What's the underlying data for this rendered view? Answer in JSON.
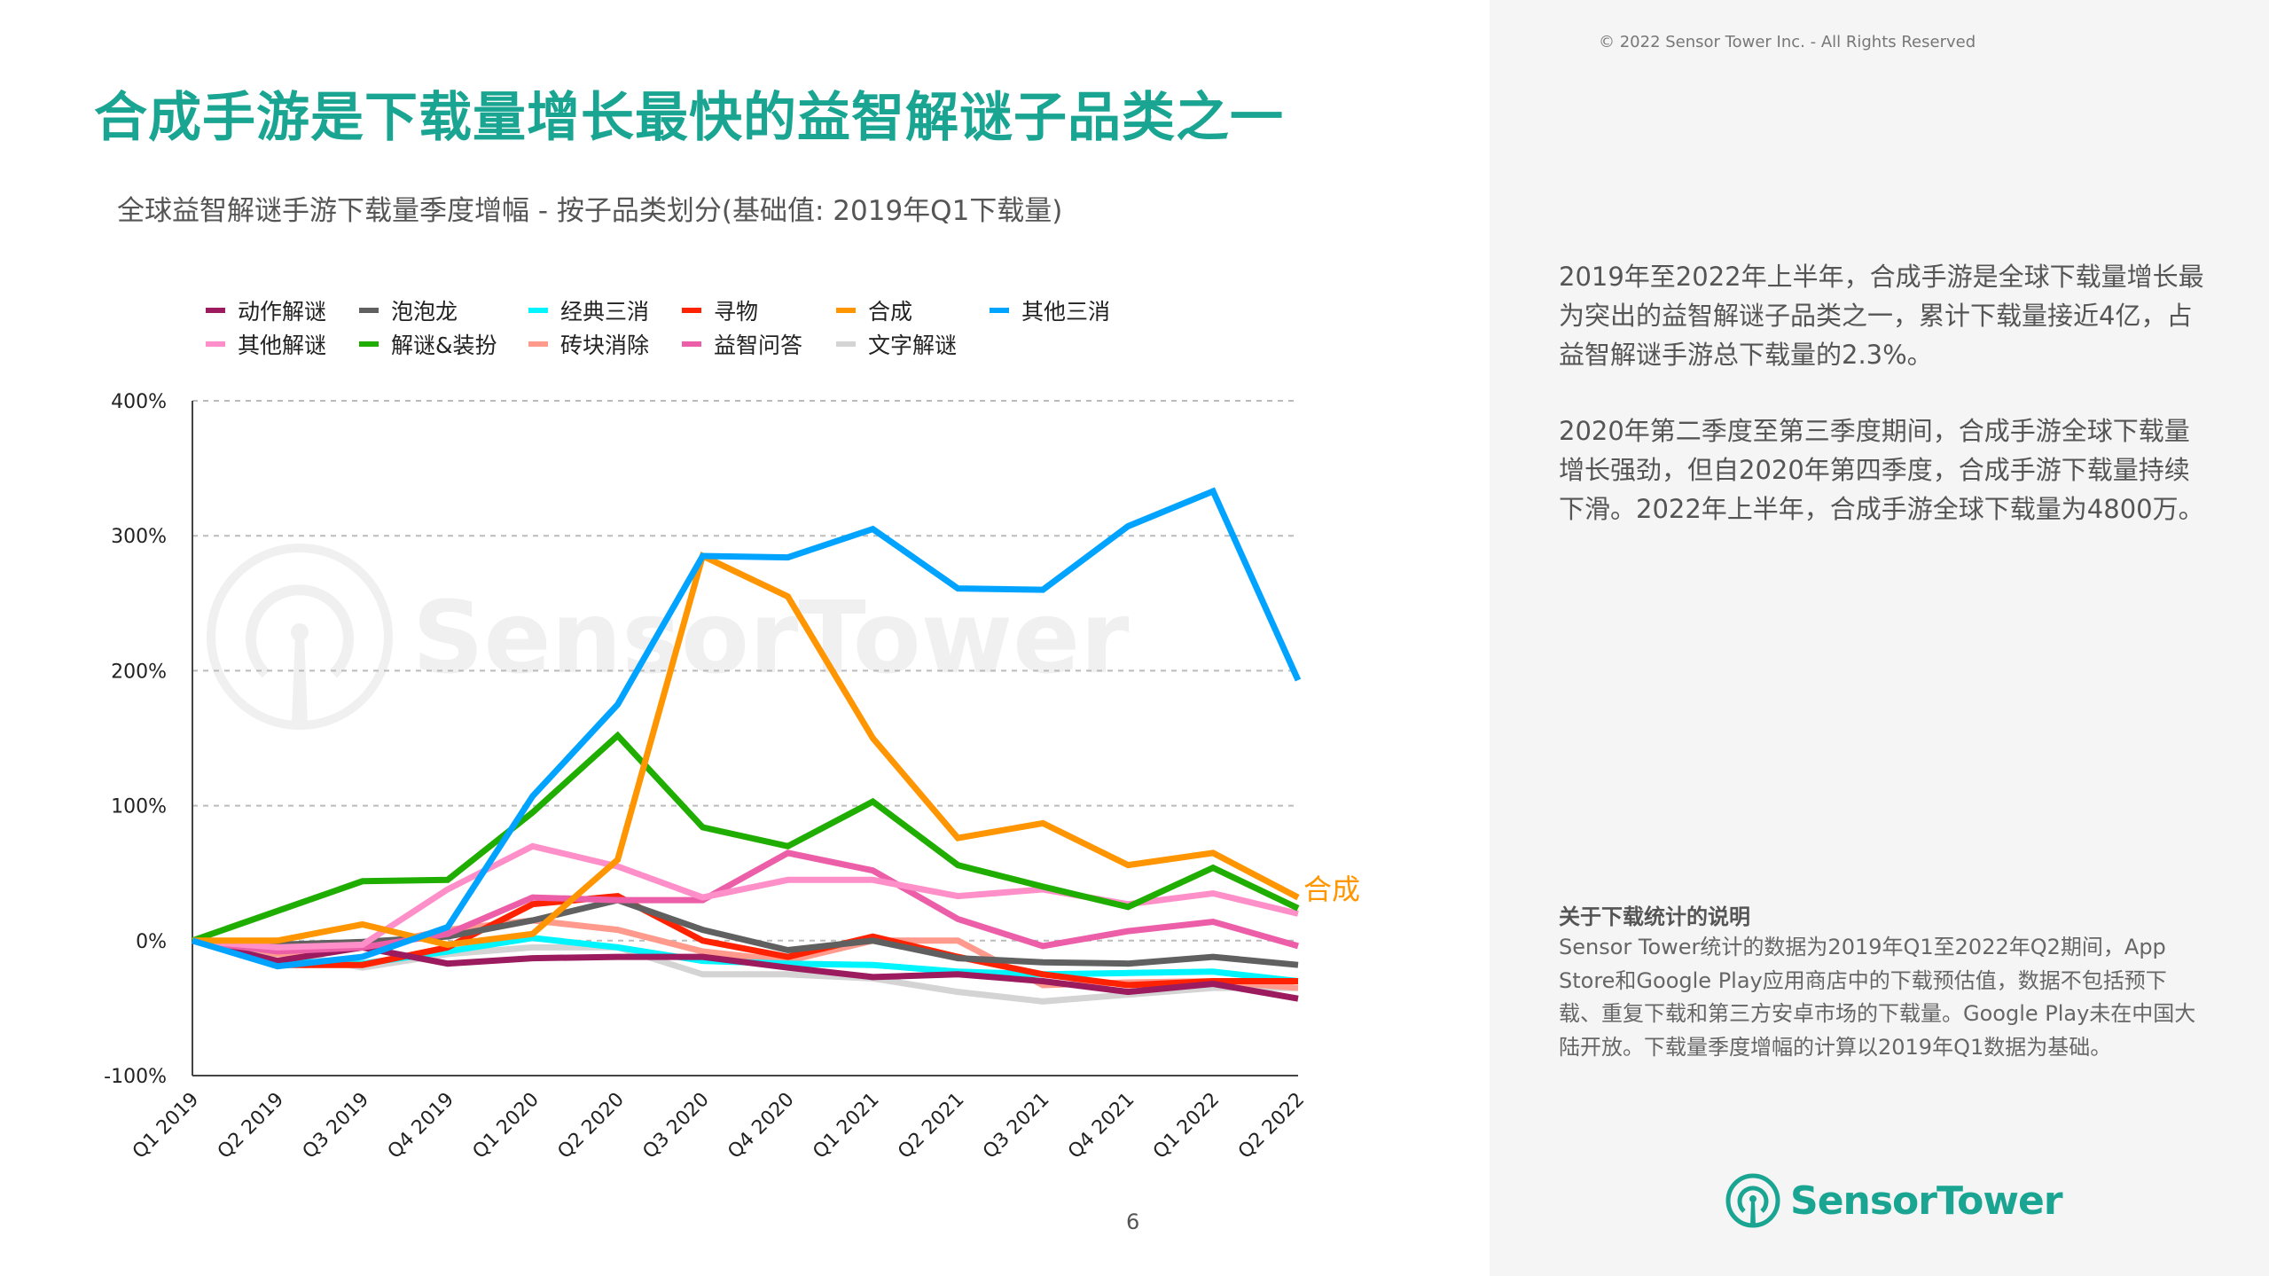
{
  "header": {
    "title": "合成手游是下载量增长最快的益智解谜子品类之一",
    "copyright": "© 2022 Sensor Tower Inc. - All Rights Reserved"
  },
  "sidebar": {
    "paragraphs": [
      "2019年至2022年上半年，合成手游是全球下载量增长最为突出的益智解谜子品类之一，累计下载量接近4亿，占益智解谜手游总下载量的2.3%。",
      "2020年第二季度至第三季度期间，合成手游全球下载量增长强劲，但自2020年第四季度，合成手游下载量持续下滑。2022年上半年，合成手游全球下载量为4800万。"
    ],
    "note_title": "关于下载统计的说明",
    "note_body": "Sensor Tower统计的数据为2019年Q1至2022年Q2期间，App Store和Google Play应用商店中的下载预估值，数据不包括预下载、重复下载和第三方安卓市场的下载量。Google Play未在中国大陆开放。下载量季度增幅的计算以2019年Q1数据为基础。",
    "logo_text": "SensorTower"
  },
  "page_number": "6",
  "watermark": "SensorTower",
  "chart_data": {
    "type": "line",
    "title": "全球益智解谜手游下载量季度增幅 - 按子品类划分(基础值: 2019年Q1下载量)",
    "xlabel": "",
    "ylabel": "",
    "ylim": [
      -100,
      400
    ],
    "yticks": [
      "400%",
      "300%",
      "200%",
      "100%",
      "0%",
      "-100%"
    ],
    "ytick_values": [
      400,
      300,
      200,
      100,
      0,
      -100
    ],
    "grid": true,
    "legend_position": "top",
    "categories": [
      "Q1 2019",
      "Q2 2019",
      "Q3 2019",
      "Q4 2019",
      "Q1 2020",
      "Q2 2020",
      "Q3 2020",
      "Q4 2020",
      "Q1 2021",
      "Q2 2021",
      "Q3 2021",
      "Q4 2021",
      "Q1 2022",
      "Q2 2022"
    ],
    "annotation": "合成",
    "series": [
      {
        "name": "动作解谜",
        "color": "#9b1b5e",
        "values": [
          0,
          -15,
          -5,
          -17,
          -13,
          -12,
          -12,
          -20,
          -27,
          -25,
          -30,
          -38,
          -32,
          -43
        ]
      },
      {
        "name": "泡泡龙",
        "color": "#606060",
        "values": [
          0,
          -3,
          -1,
          3,
          15,
          30,
          8,
          -7,
          0,
          -13,
          -16,
          -17,
          -12,
          -18
        ]
      },
      {
        "name": "经典三消",
        "color": "#00f5ff",
        "values": [
          0,
          -15,
          -17,
          -8,
          2,
          -5,
          -15,
          -17,
          -18,
          -23,
          -25,
          -24,
          -23,
          -30
        ]
      },
      {
        "name": "寻物",
        "color": "#ff2200",
        "values": [
          0,
          -18,
          -18,
          -5,
          27,
          33,
          0,
          -12,
          3,
          -12,
          -25,
          -33,
          -30,
          -30
        ]
      },
      {
        "name": "合成",
        "color": "#ff9500",
        "values": [
          0,
          0,
          12,
          -3,
          5,
          60,
          285,
          255,
          150,
          76,
          87,
          56,
          65,
          32
        ]
      },
      {
        "name": "其他三消",
        "color": "#00a3ff",
        "values": [
          0,
          -19,
          -12,
          10,
          107,
          175,
          285,
          284,
          305,
          261,
          260,
          307,
          333,
          193
        ]
      },
      {
        "name": "其他解谜",
        "color": "#ff8fc8",
        "values": [
          0,
          -5,
          -3,
          38,
          70,
          55,
          32,
          45,
          45,
          33,
          38,
          27,
          35,
          20
        ]
      },
      {
        "name": "解谜&装扮",
        "color": "#1fae00",
        "values": [
          0,
          22,
          44,
          45,
          95,
          152,
          84,
          70,
          103,
          56,
          40,
          25,
          54,
          24
        ]
      },
      {
        "name": "砖块消除",
        "color": "#ff9a8c",
        "values": [
          0,
          -10,
          -5,
          8,
          15,
          8,
          -8,
          -15,
          0,
          0,
          -33,
          -31,
          -30,
          -35
        ]
      },
      {
        "name": "益智问答",
        "color": "#ec5fa8",
        "values": [
          0,
          -8,
          -5,
          5,
          32,
          30,
          30,
          65,
          52,
          16,
          -4,
          7,
          14,
          -4
        ]
      },
      {
        "name": "文字解谜",
        "color": "#d4d4d4",
        "values": [
          0,
          -8,
          -20,
          -10,
          -5,
          -5,
          -25,
          -25,
          -28,
          -38,
          -45,
          -40,
          -35,
          -35
        ]
      }
    ]
  }
}
